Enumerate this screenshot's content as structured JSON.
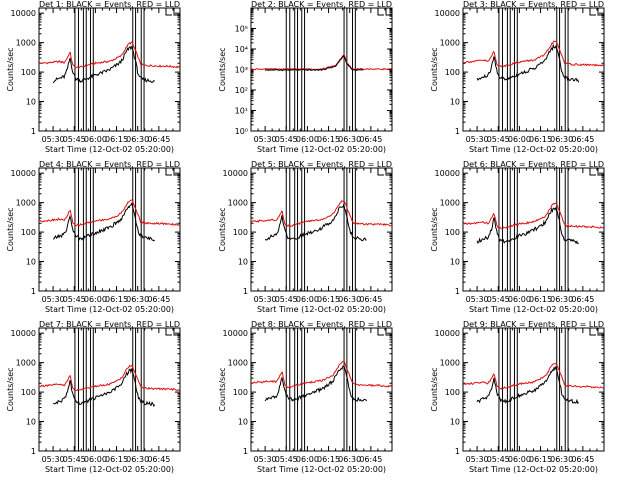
{
  "chart_data": {
    "type": "line",
    "panel_titles": [
      "Det 1: BLACK = Events, RED = LLD",
      "Det 2: BLACK = Events, RED = LLD",
      "Det 3: BLACK = Events, RED = LLD",
      "Det 4: BLACK = Events, RED = LLD",
      "Det 5: BLACK = Events, RED = LLD",
      "Det 6: BLACK = Events, RED = LLD",
      "Det 7: BLACK = Events, RED = LLD",
      "Det 8: BLACK = Events, RED = LLD",
      "Det 9: BLACK = Events, RED = LLD"
    ],
    "xlabel": "Start Time (12-Oct-02 05:20:00)",
    "ylabel": "Counts/sec",
    "xlim_minutes": [
      0,
      100
    ],
    "x_tick_minutes": [
      10,
      25,
      40,
      55,
      70,
      85
    ],
    "x_tick_labels": [
      "05:30",
      "05:45",
      "06:00",
      "06:15",
      "06:30",
      "06:45"
    ],
    "y_scale": "log",
    "ylim_standard": [
      1,
      15000
    ],
    "y_tick_labels_standard": [
      "10000",
      "1000",
      "100",
      "10",
      "1"
    ],
    "ylim_det2": [
      1,
      1000000
    ],
    "y_tick_labels_det2": [
      "10⁵",
      "10⁴",
      "10³",
      "10²",
      "10¹",
      "10⁰"
    ],
    "vertical_markers_minutes": [
      [
        25.5,
        28,
        31.5,
        33.5,
        36.5,
        38.5,
        66.5,
        68.5,
        72.5,
        74.5
      ],
      [
        25,
        27.5,
        31,
        33,
        36,
        38,
        66,
        68,
        72,
        74
      ],
      [
        25.5,
        28,
        31.5,
        33.5,
        36.5,
        38.5,
        66.5,
        68.5,
        72.5,
        74.5
      ],
      [
        25.5,
        28,
        31.5,
        33.5,
        36.5,
        38.5,
        66.5,
        68.5,
        72.5,
        74.5
      ],
      [
        25,
        27.5,
        31,
        33,
        36,
        38,
        66,
        68,
        72,
        74
      ],
      [
        25.5,
        28,
        31.5,
        33.5,
        36.5,
        38.5,
        66.5,
        68.5,
        72.5,
        74.5
      ],
      [
        25.5,
        28,
        31.5,
        33.5,
        36.5,
        38.5,
        66.5,
        68.5,
        72.5,
        74.5
      ],
      [
        25,
        27.5,
        31,
        33,
        36,
        38,
        66,
        68,
        72,
        74
      ],
      [
        25.5,
        28,
        31.5,
        33.5,
        36.5,
        38.5,
        66.5,
        68.5,
        72.5,
        74.5
      ]
    ],
    "series": [
      {
        "name": "LLD",
        "color": "#e01010",
        "x": [
          2,
          8,
          14,
          18,
          20,
          22,
          24,
          26,
          30,
          34,
          40,
          46,
          50,
          54,
          58,
          60,
          62,
          64,
          66,
          68,
          70,
          72,
          74,
          80,
          86,
          90,
          98
        ],
        "values": [
          200,
          210,
          230,
          210,
          300,
          480,
          170,
          140,
          150,
          170,
          200,
          220,
          230,
          280,
          350,
          480,
          700,
          950,
          1000,
          600,
          350,
          190,
          170,
          165,
          160,
          160,
          150
        ]
      },
      {
        "name": "Events",
        "color": "#000000",
        "x": [
          2,
          8,
          14,
          18,
          20,
          22,
          24,
          26,
          30,
          34,
          40,
          46,
          50,
          54,
          58,
          60,
          62,
          64,
          66,
          68,
          70,
          72,
          74,
          80,
          86,
          90,
          98
        ],
        "values": [
          40,
          45,
          60,
          70,
          120,
          300,
          100,
          60,
          50,
          60,
          80,
          100,
          120,
          160,
          220,
          320,
          500,
          650,
          700,
          300,
          100,
          60,
          55,
          50,
          40,
          35,
          30
        ]
      }
    ]
  }
}
